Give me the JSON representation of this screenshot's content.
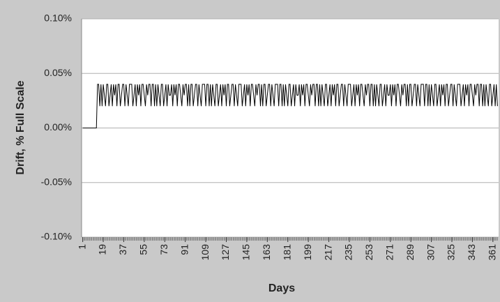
{
  "chart_data": {
    "type": "line",
    "xlabel": "Days",
    "ylabel": "Drift, % Full Scale",
    "color": "#000000",
    "grid": true,
    "xlim": [
      0,
      366
    ],
    "ylim": [
      -0.1,
      0.1
    ],
    "xticks": [
      1,
      19,
      37,
      55,
      73,
      91,
      109,
      127,
      145,
      163,
      181,
      199,
      217,
      235,
      253,
      271,
      289,
      307,
      325,
      343,
      361
    ],
    "yticks": [
      {
        "value": -0.1,
        "label": "-0.10%"
      },
      {
        "value": -0.05,
        "label": "-0.05%"
      },
      {
        "value": 0,
        "label": "0.00%"
      },
      {
        "value": 0.05,
        "label": "0.05%"
      },
      {
        "value": 0.1,
        "label": "0.10%"
      }
    ],
    "x": [
      1,
      2,
      3,
      4,
      5,
      6,
      7,
      8,
      9,
      10,
      11,
      12,
      13,
      14,
      15,
      16,
      17,
      18,
      19,
      20,
      21,
      22,
      23,
      24,
      25,
      26,
      27,
      28,
      29,
      30,
      31,
      32,
      33,
      34,
      35,
      36,
      37,
      38,
      39,
      40,
      41,
      42,
      43,
      44,
      45,
      46,
      47,
      48,
      49,
      50,
      51,
      52,
      53,
      54,
      55,
      56,
      57,
      58,
      59,
      60,
      61,
      62,
      63,
      64,
      65,
      66,
      67,
      68,
      69,
      70,
      71,
      72,
      73,
      74,
      75,
      76,
      77,
      78,
      79,
      80,
      81,
      82,
      83,
      84,
      85,
      86,
      87,
      88,
      89,
      90,
      91,
      92,
      93,
      94,
      95,
      96,
      97,
      98,
      99,
      100,
      101,
      102,
      103,
      104,
      105,
      106,
      107,
      108,
      109,
      110,
      111,
      112,
      113,
      114,
      115,
      116,
      117,
      118,
      119,
      120,
      121,
      122,
      123,
      124,
      125,
      126,
      127,
      128,
      129,
      130,
      131,
      132,
      133,
      134,
      135,
      136,
      137,
      138,
      139,
      140,
      141,
      142,
      143,
      144,
      145,
      146,
      147,
      148,
      149,
      150,
      151,
      152,
      153,
      154,
      155,
      156,
      157,
      158,
      159,
      160,
      161,
      162,
      163,
      164,
      165,
      166,
      167,
      168,
      169,
      170,
      171,
      172,
      173,
      174,
      175,
      176,
      177,
      178,
      179,
      180,
      181,
      182,
      183,
      184,
      185,
      186,
      187,
      188,
      189,
      190,
      191,
      192,
      193,
      194,
      195,
      196,
      197,
      198,
      199,
      200,
      201,
      202,
      203,
      204,
      205,
      206,
      207,
      208,
      209,
      210,
      211,
      212,
      213,
      214,
      215,
      216,
      217,
      218,
      219,
      220,
      221,
      222,
      223,
      224,
      225,
      226,
      227,
      228,
      229,
      230,
      231,
      232,
      233,
      234,
      235,
      236,
      237,
      238,
      239,
      240,
      241,
      242,
      243,
      244,
      245,
      246,
      247,
      248,
      249,
      250,
      251,
      252,
      253,
      254,
      255,
      256,
      257,
      258,
      259,
      260,
      261,
      262,
      263,
      264,
      265,
      266,
      267,
      268,
      269,
      270,
      271,
      272,
      273,
      274,
      275,
      276,
      277,
      278,
      279,
      280,
      281,
      282,
      283,
      284,
      285,
      286,
      287,
      288,
      289,
      290,
      291,
      292,
      293,
      294,
      295,
      296,
      297,
      298,
      299,
      300,
      301,
      302,
      303,
      304,
      305,
      306,
      307,
      308,
      309,
      310,
      311,
      312,
      313,
      314,
      315,
      316,
      317,
      318,
      319,
      320,
      321,
      322,
      323,
      324,
      325,
      326,
      327,
      328,
      329,
      330,
      331,
      332,
      333,
      334,
      335,
      336,
      337,
      338,
      339,
      340,
      341,
      342,
      343,
      344,
      345,
      346,
      347,
      348,
      349,
      350,
      351,
      352,
      353,
      354,
      355,
      356,
      357,
      358,
      359,
      360,
      361,
      362,
      363,
      364,
      365
    ],
    "values": [
      0,
      0,
      0,
      0,
      0,
      0,
      0,
      0,
      0,
      0,
      0,
      0,
      0,
      0.04,
      0.04,
      0.02,
      0.04,
      0.02,
      0.04,
      0.03,
      0.02,
      0.04,
      0.04,
      0.02,
      0.03,
      0.04,
      0.02,
      0.04,
      0.03,
      0.04,
      0.02,
      0.04,
      0.04,
      0.02,
      0.03,
      0.04,
      0.04,
      0.02,
      0.04,
      0.03,
      0.02,
      0.04,
      0.04,
      0.04,
      0.02,
      0.03,
      0.04,
      0.02,
      0.04,
      0.03,
      0.04,
      0.02,
      0.04,
      0.04,
      0.03,
      0.02,
      0.04,
      0.03,
      0.04,
      0.04,
      0.02,
      0.04,
      0.04,
      0.02,
      0.04,
      0.02,
      0.04,
      0.03,
      0.02,
      0.04,
      0.04,
      0.02,
      0.03,
      0.04,
      0.02,
      0.04,
      0.03,
      0.03,
      0.04,
      0.02,
      0.04,
      0.03,
      0.04,
      0.02,
      0.04,
      0.04,
      0.03,
      0.02,
      0.04,
      0.03,
      0.04,
      0.04,
      0.02,
      0.04,
      0.02,
      0.04,
      0.04,
      0.02,
      0.03,
      0.04,
      0.04,
      0.02,
      0.04,
      0.03,
      0.02,
      0.04,
      0.04,
      0.04,
      0.02,
      0.04,
      0.04,
      0.02,
      0.04,
      0.02,
      0.04,
      0.03,
      0.02,
      0.04,
      0.04,
      0.02,
      0.03,
      0.04,
      0.02,
      0.04,
      0.03,
      0.04,
      0.02,
      0.04,
      0.04,
      0.02,
      0.03,
      0.04,
      0.04,
      0.02,
      0.04,
      0.03,
      0.02,
      0.04,
      0.04,
      0.04,
      0.02,
      0.03,
      0.04,
      0.02,
      0.04,
      0.03,
      0.04,
      0.02,
      0.04,
      0.04,
      0.03,
      0.02,
      0.04,
      0.03,
      0.04,
      0.04,
      0.02,
      0.04,
      0.02,
      0.04,
      0.04,
      0.02,
      0.03,
      0.04,
      0.04,
      0.02,
      0.04,
      0.03,
      0.02,
      0.04,
      0.04,
      0.04,
      0.02,
      0.04,
      0.04,
      0.02,
      0.04,
      0.02,
      0.04,
      0.03,
      0.02,
      0.04,
      0.04,
      0.02,
      0.03,
      0.04,
      0.02,
      0.04,
      0.03,
      0.03,
      0.04,
      0.02,
      0.04,
      0.03,
      0.04,
      0.02,
      0.04,
      0.04,
      0.03,
      0.02,
      0.04,
      0.03,
      0.04,
      0.04,
      0.02,
      0.04,
      0.04,
      0.02,
      0.04,
      0.02,
      0.04,
      0.03,
      0.02,
      0.04,
      0.04,
      0.02,
      0.03,
      0.04,
      0.02,
      0.04,
      0.03,
      0.04,
      0.02,
      0.04,
      0.04,
      0.02,
      0.03,
      0.04,
      0.04,
      0.02,
      0.04,
      0.03,
      0.02,
      0.04,
      0.04,
      0.04,
      0.02,
      0.03,
      0.04,
      0.02,
      0.04,
      0.03,
      0.04,
      0.02,
      0.04,
      0.04,
      0.03,
      0.02,
      0.04,
      0.03,
      0.04,
      0.04,
      0.02,
      0.04,
      0.04,
      0.02,
      0.04,
      0.02,
      0.04,
      0.03,
      0.02,
      0.04,
      0.04,
      0.02,
      0.03,
      0.04,
      0.02,
      0.04,
      0.03,
      0.03,
      0.04,
      0.02,
      0.04,
      0.03,
      0.04,
      0.02,
      0.04,
      0.04,
      0.03,
      0.02,
      0.04,
      0.03,
      0.04,
      0.04,
      0.02,
      0.04,
      0.02,
      0.04,
      0.04,
      0.02,
      0.03,
      0.04,
      0.04,
      0.02,
      0.04,
      0.03,
      0.02,
      0.04,
      0.04,
      0.04,
      0.02,
      0.04,
      0.04,
      0.02,
      0.04,
      0.02,
      0.04,
      0.03,
      0.02,
      0.04,
      0.04,
      0.02,
      0.03,
      0.04,
      0.02,
      0.04,
      0.03,
      0.04,
      0.02,
      0.04,
      0.04,
      0.02,
      0.03,
      0.04,
      0.04,
      0.02,
      0.04,
      0.03,
      0.02,
      0.04,
      0.04,
      0.04,
      0.02,
      0.03,
      0.04,
      0.02,
      0.04,
      0.03,
      0.04,
      0.02,
      0.04,
      0.04,
      0.03,
      0.02,
      0.04,
      0.03,
      0.04,
      0.04,
      0.02,
      0.04,
      0.04,
      0.02,
      0.04,
      0.02,
      0.04,
      0.03,
      0.02,
      0.04,
      0.04,
      0.02,
      0.03,
      0.04,
      0.02,
      0.04,
      0.02
    ]
  }
}
